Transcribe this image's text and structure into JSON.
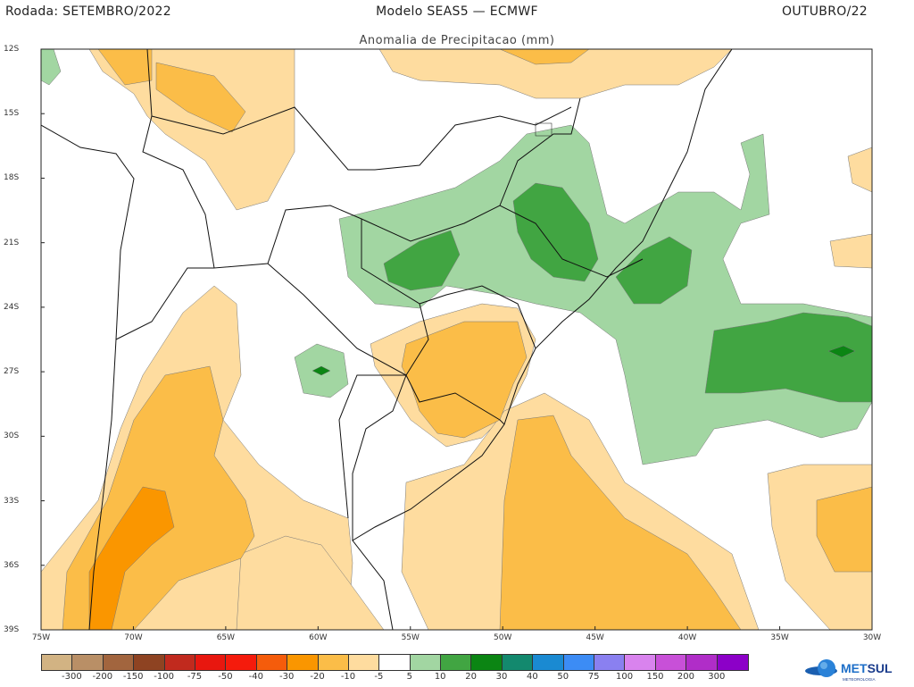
{
  "header": {
    "left": "Rodada: SETEMBRO/2022",
    "center": "Modelo SEAS5 — ECMWF",
    "right": "OUTUBRO/22",
    "subtitle": "Anomalia de Precipitacao (mm)"
  },
  "map": {
    "lon_range": [
      -75,
      -30
    ],
    "lat_range": [
      -39,
      -12
    ],
    "lat_labels": [
      "12S",
      "15S",
      "18S",
      "21S",
      "24S",
      "27S",
      "30S",
      "33S",
      "36S",
      "39S"
    ],
    "lon_labels": [
      "75W",
      "70W",
      "65W",
      "60W",
      "55W",
      "50W",
      "45W",
      "40W",
      "35W",
      "30W"
    ]
  },
  "colorbar": {
    "labels": [
      "-300",
      "-200",
      "-150",
      "-100",
      "-75",
      "-50",
      "-40",
      "-30",
      "-20",
      "-10",
      "-5",
      "5",
      "10",
      "20",
      "30",
      "40",
      "50",
      "75",
      "100",
      "150",
      "200",
      "300"
    ],
    "colors": [
      "#d2b383",
      "#b98f66",
      "#a2653e",
      "#8e4322",
      "#c12a1e",
      "#e8170f",
      "#f51b0c",
      "#f55c0b",
      "#fa9600",
      "#fbbd48",
      "#fedc9f",
      "#ffffff",
      "#a2d6a2",
      "#41a542",
      "#0b8513",
      "#13896e",
      "#1a8ad2",
      "#3c8cf5",
      "#8a80f0",
      "#d983ee",
      "#c850d8",
      "#b02dc8",
      "#8c00c8"
    ]
  },
  "logo": {
    "text": "METSUL",
    "subtext": "METEOROLOGIA"
  }
}
